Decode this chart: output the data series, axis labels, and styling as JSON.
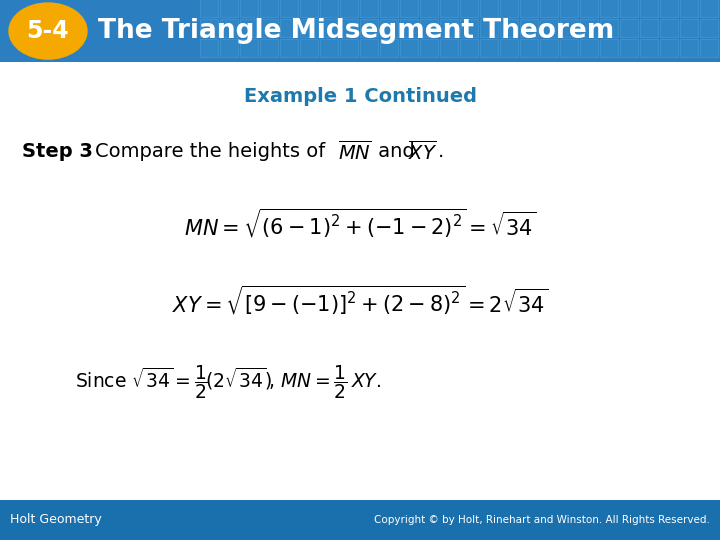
{
  "header_text": "The Triangle Midsegment Theorem",
  "header_number": "5-4",
  "header_bg_start": "#1a6db5",
  "header_bg_end": "#4a9fd4",
  "header_number_bg": "#f5a800",
  "example_title": "Example 1 Continued",
  "example_title_color": "#1e7aad",
  "footer_text_left": "Holt Geometry",
  "footer_text_right": "Copyright © by Holt, Rinehart and Winston. All Rights Reserved.",
  "footer_bg_color": "#1a6fad",
  "body_bg_color": "#ffffff"
}
